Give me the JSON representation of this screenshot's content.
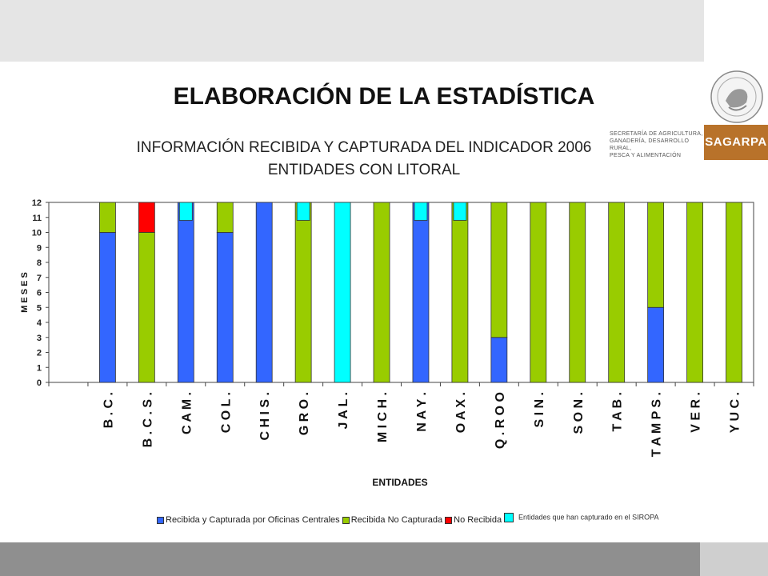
{
  "slide": {
    "title": "ELABORACIÓN  DE LA ESTADÍSTICA",
    "subtitle_line1": "INFORMACIÓN RECIBIDA Y CAPTURADA DEL INDICADOR 2006",
    "subtitle_line2": "ENTIDADES CON LITORAL"
  },
  "branding": {
    "seal_text": "ESTADOS UNIDOS MEXICANOS",
    "logo_text": "SAGARPA",
    "secretaria_lines": [
      "SECRETARÍA DE AGRICULTURA,",
      "GANADERÍA, DESARROLLO RURAL,",
      "PESCA Y ALIMENTACIÓN"
    ],
    "logo_color": "#b8722a"
  },
  "chart_data": {
    "type": "bar",
    "stacked": true,
    "categories": [
      "B.C.",
      "B.C.S.",
      "CAM.",
      "COL.",
      "CHIS.",
      "GRO.",
      "JAL.",
      "MICH.",
      "NAY.",
      "OAX.",
      "Q. ROO",
      "SIN.",
      "SON.",
      "TAB.",
      "TAMPS.",
      "VER.",
      "YUC."
    ],
    "category_labels": [
      "B . C .",
      "B . C . S .",
      "C A M .",
      "C O L .",
      "C H I S .",
      "G R O .",
      "J A L .",
      "M I C H .",
      "N A Y .",
      "O A X .",
      "Q . R O O",
      "S I N .",
      "S O N .",
      "T A B .",
      "T A M P S .",
      "V E R .",
      "Y U C ."
    ],
    "series": [
      {
        "name": "Recibida y Capturada por Oficinas Centrales",
        "color": "#3366ff",
        "values": [
          10,
          0,
          12,
          10,
          12,
          0,
          0,
          0,
          12,
          0,
          3,
          0,
          0,
          0,
          5,
          0,
          0
        ]
      },
      {
        "name": "Recibida No Capturada",
        "color": "#99cc00",
        "values": [
          2,
          10,
          0,
          2,
          0,
          12,
          0,
          12,
          0,
          12,
          9,
          12,
          12,
          12,
          7,
          12,
          12
        ]
      },
      {
        "name": "No Recibida",
        "color": "#ff0000",
        "values": [
          0,
          2,
          0,
          0,
          0,
          0,
          0,
          0,
          0,
          0,
          0,
          0,
          0,
          0,
          0,
          0,
          0
        ]
      }
    ],
    "siropa_series": {
      "name": "Entidades que han capturado en el SIROPA",
      "color": "#00ffff",
      "full_bar": [
        "JAL."
      ],
      "marker": [
        "CAM.",
        "GRO.",
        "NAY.",
        "OAX."
      ]
    },
    "ylim": [
      0,
      12
    ],
    "yticks": [
      0,
      1,
      2,
      3,
      4,
      5,
      6,
      7,
      8,
      9,
      10,
      11,
      12
    ],
    "ylabel": "M E S E S",
    "xlabel": "ENTIDADES",
    "grid": false,
    "legend_position": "bottom"
  }
}
